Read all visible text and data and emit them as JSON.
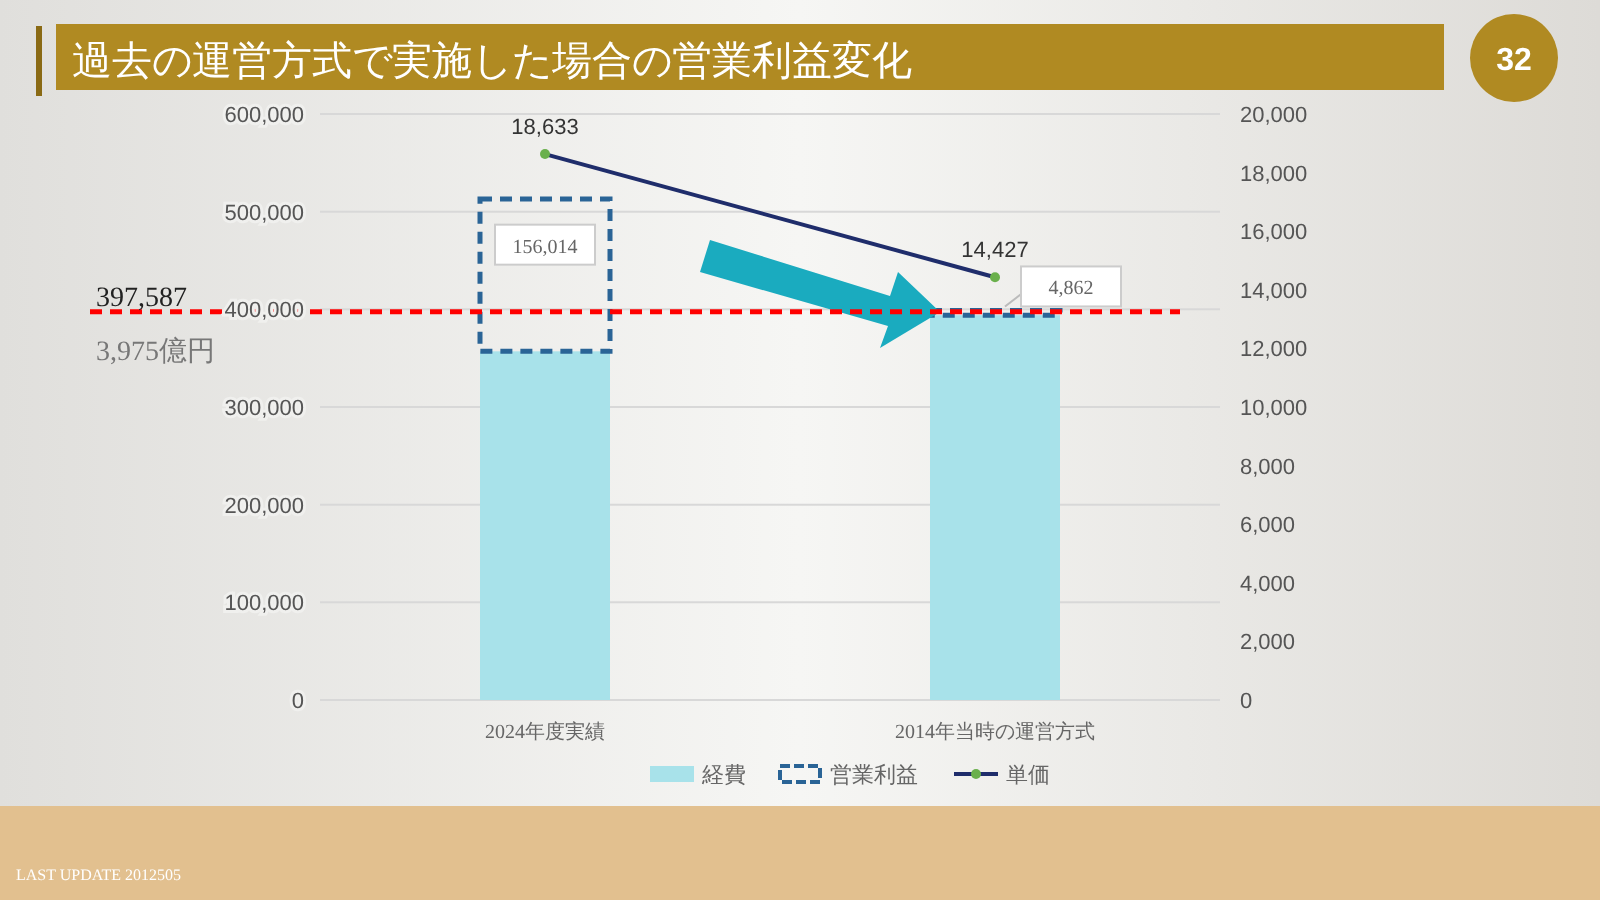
{
  "chart_data": {
    "type": "bar",
    "title": "過去の運営方式で実施した場合の営業利益変化",
    "stacked": true,
    "categories": [
      "2024年度実績",
      "2014年当時の運営方式"
    ],
    "series": [
      {
        "name": "経費",
        "color": "#a8e2ea",
        "values": [
          357000,
          394000
        ]
      },
      {
        "name": "営業利益",
        "color": "#2a6496",
        "line_style": "dashed",
        "values": [
          156014,
          4862
        ],
        "value_labels": [
          "156,014",
          "4,862"
        ]
      },
      {
        "name": "単価",
        "type": "line",
        "axis": "y2",
        "color": "#1f2d6b",
        "marker": "circle",
        "values": [
          18633,
          14427
        ],
        "value_labels": [
          "18,633",
          "14,427"
        ]
      }
    ],
    "ylim": [
      0,
      600000
    ],
    "yticks": [
      {
        "value": 0,
        "label": "0"
      },
      {
        "value": 100000,
        "label": "100,000"
      },
      {
        "value": 200000,
        "label": "200,000"
      },
      {
        "value": 300000,
        "label": "300,000"
      },
      {
        "value": 400000,
        "label": "400,000"
      },
      {
        "value": 500000,
        "label": "500,000"
      },
      {
        "value": 600000,
        "label": "600,000"
      }
    ],
    "y2lim": [
      0,
      20000
    ],
    "y2ticks": [
      {
        "value": 0,
        "label": "0"
      },
      {
        "value": 2000,
        "label": "2,000"
      },
      {
        "value": 4000,
        "label": "4,000"
      },
      {
        "value": 6000,
        "label": "6,000"
      },
      {
        "value": 8000,
        "label": "8,000"
      },
      {
        "value": 10000,
        "label": "10,000"
      },
      {
        "value": 12000,
        "label": "12,000"
      },
      {
        "value": 14000,
        "label": "14,000"
      },
      {
        "value": 16000,
        "label": "16,000"
      },
      {
        "value": 18000,
        "label": "18,000"
      },
      {
        "value": 20000,
        "label": "20,000"
      }
    ],
    "ref_lines": [
      {
        "axis": "y",
        "value": 397587,
        "label": "397,587",
        "color": "#ff0000",
        "line_style": "dashed"
      }
    ],
    "annotations": [
      "3,975億円",
      "32",
      "LAST UPDATE 2012505"
    ],
    "grid": "y",
    "legend": "bottom"
  }
}
